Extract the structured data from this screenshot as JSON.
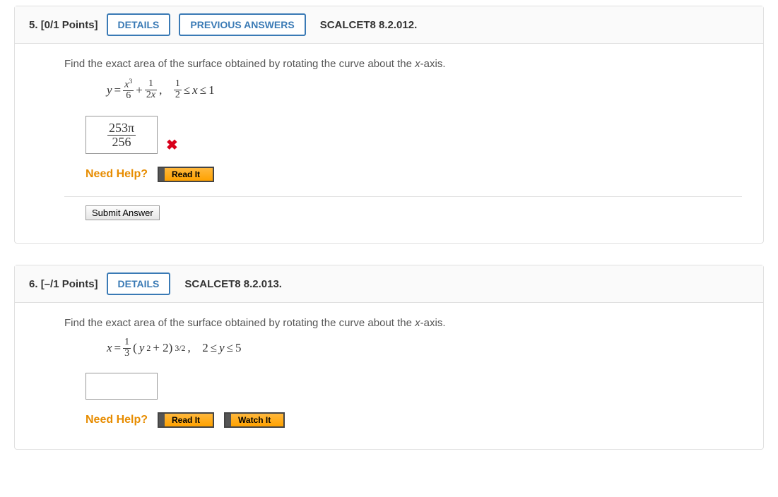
{
  "questions": [
    {
      "number": "5.",
      "points": "[0/1 Points]",
      "detailsLabel": "DETAILS",
      "prevLabel": "PREVIOUS ANSWERS",
      "source": "SCALCET8 8.2.012.",
      "prompt": "Find the exact area of the surface obtained by rotating the curve about the ",
      "promptVar": "x",
      "promptEnd": "-axis.",
      "eq": {
        "lhs": "y",
        "eq": "=",
        "t1num": "x",
        "t1exp": "3",
        "t1den": "6",
        "plus": "+",
        "t2num": "1",
        "t2denA": "2",
        "t2denB": "x",
        "comma": ",",
        "bnum": "1",
        "bden": "2",
        "le1": "≤",
        "xv": "x",
        "le2": "≤",
        "hi": "1"
      },
      "answer": {
        "num": "253π",
        "den": "256"
      },
      "wrongMark": "✖",
      "needHelpLabel": "Need Help?",
      "readIt": "Read It",
      "submitLabel": "Submit Answer"
    },
    {
      "number": "6.",
      "points": "[–/1 Points]",
      "detailsLabel": "DETAILS",
      "source": "SCALCET8 8.2.013.",
      "prompt": "Find the exact area of the surface obtained by rotating the curve about the ",
      "promptVar": "x",
      "promptEnd": "-axis.",
      "eq": {
        "lhs": "x",
        "eq": "=",
        "fnum": "1",
        "fden": "3",
        "open": "(",
        "yv": "y",
        "sq": "2",
        "plus": " + 2)",
        "exp": "3/2",
        "comma": ",",
        "lo": "2",
        "le1": "≤",
        "yv2": "y",
        "le2": "≤",
        "hi": "5"
      },
      "needHelpLabel": "Need Help?",
      "readIt": "Read It",
      "watchIt": "Watch It"
    }
  ]
}
